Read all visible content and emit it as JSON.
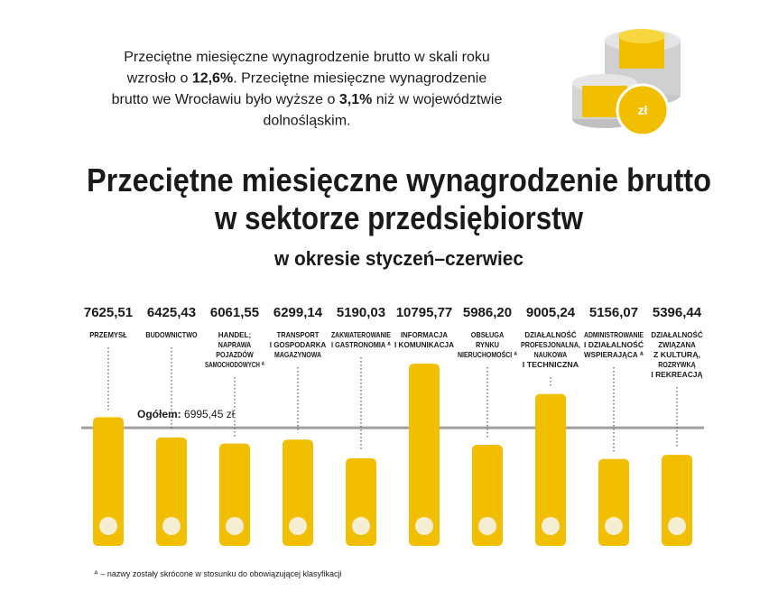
{
  "intro": [
    [
      "Przeciętne miesięczne wynagrodzenie brutto w skali roku"
    ],
    [
      "wzrosło o ",
      "12,6%",
      ". Przeciętne miesięczne wynagrodzenie"
    ],
    [
      "brutto we Wrocławiu było wyższe o ",
      "3,1%",
      " niż w województwie"
    ],
    [
      "dolnośląskim."
    ]
  ],
  "coin_label": "zł",
  "chart_data": {
    "type": "bar",
    "title": [
      "Przeciętne miesięczne wynagrodzenie brutto",
      "w sektorze przedsiębiorstw"
    ],
    "subtitle": "w okresie styczeń–czerwiec",
    "categories": [
      [
        "PRZEMYSŁ"
      ],
      [
        "BUDOWNICTWO"
      ],
      [
        "HANDEL;",
        "NAPRAWA",
        "POJAZDÓW",
        "SAMOCHODOWYCH ᐞ"
      ],
      [
        "TRANSPORT",
        "I GOSPODARKA",
        "MAGAZYNOWA"
      ],
      [
        "ZAKWATEROWANIE",
        "I GASTRONOMIA ᐞ"
      ],
      [
        "INFORMACJA",
        "I KOMUNIKACJA"
      ],
      [
        "OBSŁUGA",
        "RYNKU",
        "NIERUCHOMOŚCI ᐞ"
      ],
      [
        "DZIAŁALNOŚĆ",
        "PROFESJONALNA,",
        "NAUKOWA",
        "I TECHNICZNA"
      ],
      [
        "ADMINISTROWANIE",
        "I DZIAŁALNOŚĆ",
        "WSPIERAJĄCA ᐞ"
      ],
      [
        "DZIAŁALNOŚĆ",
        "ZWIĄZANA",
        "Z KULTURĄ,",
        "ROZRYWKĄ",
        "I REKREACJĄ"
      ]
    ],
    "values": [
      7625.51,
      6425.43,
      6061.55,
      6299.14,
      5190.03,
      10795.77,
      5986.2,
      9005.24,
      5156.07,
      5396.44
    ],
    "value_labels": [
      "7625,51",
      "6425,43",
      "6061,55",
      "6299,14",
      "5190,03",
      "10795,77",
      "5986,20",
      "9005,24",
      "5156,07",
      "5396,44"
    ],
    "color": "#f2be00",
    "reference": {
      "label": "Ogółem:",
      "value": 6995.45,
      "value_label": "6995,45 zł"
    },
    "footnote": "ᐞ – nazwy zostały skrócone w stosunku do obowiązującej klasyfikacji"
  }
}
